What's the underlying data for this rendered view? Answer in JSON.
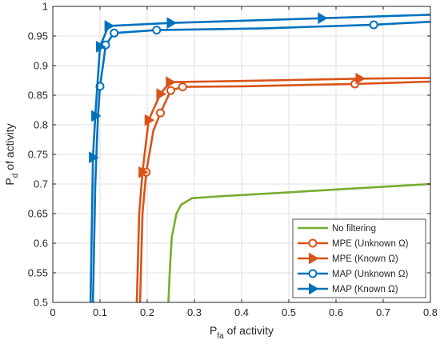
{
  "chart_data": {
    "type": "line",
    "title": "",
    "xlabel": {
      "main": "P",
      "sub": "fa",
      "rest": " of activity"
    },
    "ylabel": {
      "main": "P",
      "sub": "d",
      "rest": " of activity"
    },
    "xlim": [
      0,
      0.8
    ],
    "ylim": [
      0.5,
      1.0
    ],
    "xticks": [
      0,
      0.1,
      0.2,
      0.3,
      0.4,
      0.5,
      0.6,
      0.7,
      0.8
    ],
    "xtick_labels": [
      "0",
      "0.1",
      "0.2",
      "0.3",
      "0.4",
      "0.5",
      "0.6",
      "0.7",
      "0.8"
    ],
    "yticks": [
      0.5,
      0.55,
      0.6,
      0.65,
      0.7,
      0.75,
      0.8,
      0.85,
      0.9,
      0.95,
      1.0
    ],
    "ytick_labels": [
      "0.5",
      "0.55",
      "0.6",
      "0.65",
      "0.7",
      "0.75",
      "0.8",
      "0.85",
      "0.9",
      "0.95",
      "1"
    ],
    "grid": true,
    "legend_position": "bottom-right",
    "series": [
      {
        "name": "No filtering",
        "color": "#77AC30",
        "marker": "none",
        "points": [
          [
            0.245,
            0.5
          ],
          [
            0.248,
            0.555
          ],
          [
            0.252,
            0.61
          ],
          [
            0.262,
            0.65
          ],
          [
            0.272,
            0.665
          ],
          [
            0.295,
            0.676
          ],
          [
            0.35,
            0.679
          ],
          [
            0.5,
            0.686
          ],
          [
            0.65,
            0.693
          ],
          [
            0.8,
            0.7
          ]
        ],
        "markers": []
      },
      {
        "name": "MPE (Unknown Ω)",
        "color": "#D95319",
        "marker": "circle",
        "points": [
          [
            0.185,
            0.5
          ],
          [
            0.19,
            0.65
          ],
          [
            0.198,
            0.72
          ],
          [
            0.213,
            0.79
          ],
          [
            0.228,
            0.82
          ],
          [
            0.25,
            0.858
          ],
          [
            0.275,
            0.864
          ],
          [
            0.4,
            0.865
          ],
          [
            0.64,
            0.869
          ],
          [
            0.8,
            0.873
          ]
        ],
        "markers": [
          [
            0.198,
            0.72
          ],
          [
            0.228,
            0.82
          ],
          [
            0.25,
            0.858
          ],
          [
            0.275,
            0.864
          ],
          [
            0.64,
            0.869
          ]
        ]
      },
      {
        "name": "MPE (Known Ω)",
        "color": "#D95319",
        "marker": "triangle-right",
        "points": [
          [
            0.178,
            0.5
          ],
          [
            0.183,
            0.65
          ],
          [
            0.19,
            0.72
          ],
          [
            0.203,
            0.808
          ],
          [
            0.228,
            0.852
          ],
          [
            0.248,
            0.872
          ],
          [
            0.4,
            0.874
          ],
          [
            0.65,
            0.878
          ],
          [
            0.8,
            0.879
          ]
        ],
        "markers": [
          [
            0.19,
            0.72
          ],
          [
            0.203,
            0.808
          ],
          [
            0.228,
            0.852
          ],
          [
            0.248,
            0.872
          ],
          [
            0.65,
            0.878
          ]
        ]
      },
      {
        "name": "MAP (Unknown Ω)",
        "color": "#0072BD",
        "marker": "circle",
        "points": [
          [
            0.085,
            0.5
          ],
          [
            0.09,
            0.7
          ],
          [
            0.096,
            0.82
          ],
          [
            0.1,
            0.865
          ],
          [
            0.108,
            0.91
          ],
          [
            0.112,
            0.935
          ],
          [
            0.13,
            0.955
          ],
          [
            0.22,
            0.96
          ],
          [
            0.45,
            0.963
          ],
          [
            0.68,
            0.969
          ],
          [
            0.8,
            0.974
          ]
        ],
        "markers": [
          [
            0.1,
            0.865
          ],
          [
            0.112,
            0.935
          ],
          [
            0.13,
            0.955
          ],
          [
            0.22,
            0.96
          ],
          [
            0.68,
            0.969
          ]
        ]
      },
      {
        "name": "MAP (Known Ω)",
        "color": "#0072BD",
        "marker": "triangle-right",
        "points": [
          [
            0.08,
            0.5
          ],
          [
            0.085,
            0.745
          ],
          [
            0.09,
            0.815
          ],
          [
            0.1,
            0.932
          ],
          [
            0.118,
            0.967
          ],
          [
            0.25,
            0.972
          ],
          [
            0.57,
            0.98
          ],
          [
            0.8,
            0.986
          ]
        ],
        "markers": [
          [
            0.085,
            0.745
          ],
          [
            0.09,
            0.815
          ],
          [
            0.1,
            0.932
          ],
          [
            0.118,
            0.967
          ],
          [
            0.25,
            0.972
          ],
          [
            0.57,
            0.98
          ]
        ]
      }
    ]
  }
}
